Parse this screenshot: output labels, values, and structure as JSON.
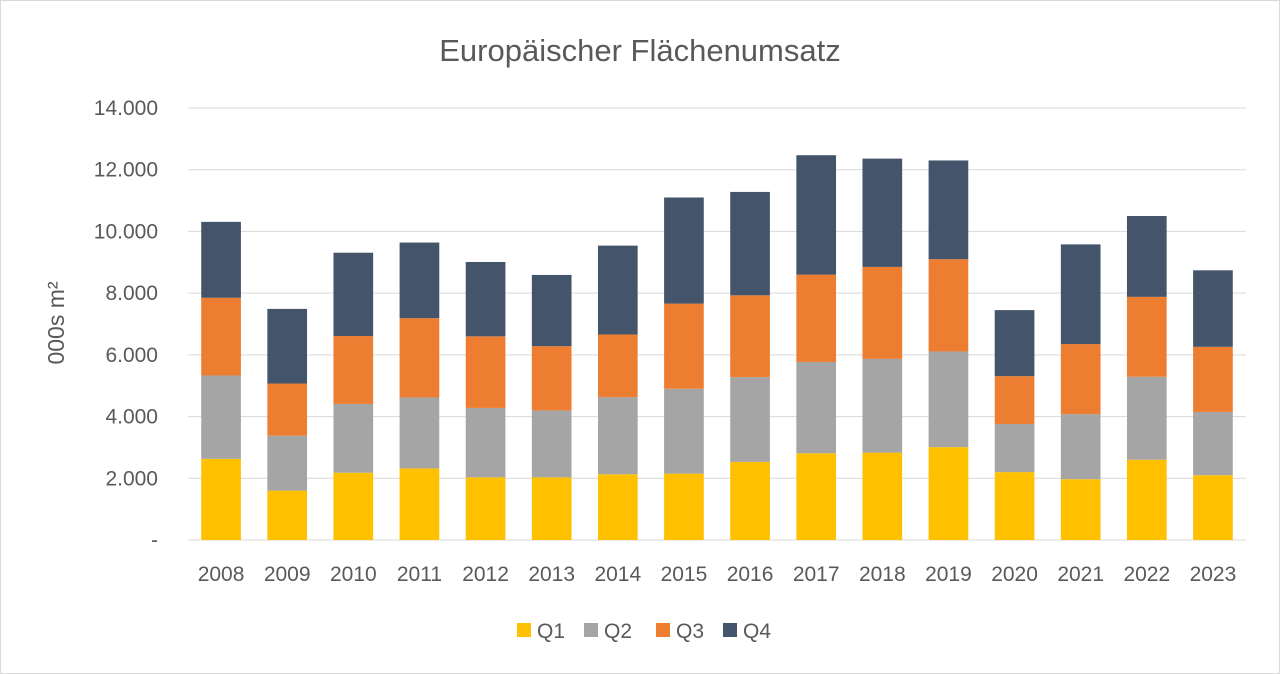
{
  "chart_data": {
    "type": "bar",
    "stacked": true,
    "title": "Europäischer Flächenumsatz",
    "ylabel": "000s m²",
    "xlabel": "",
    "ylim": [
      0,
      14000
    ],
    "yticks": [
      {
        "value": 0,
        "label": "-"
      },
      {
        "value": 2000,
        "label": "2.000"
      },
      {
        "value": 4000,
        "label": "4.000"
      },
      {
        "value": 6000,
        "label": "6.000"
      },
      {
        "value": 8000,
        "label": "8.000"
      },
      {
        "value": 10000,
        "label": "10.000"
      },
      {
        "value": 12000,
        "label": "12.000"
      },
      {
        "value": 14000,
        "label": "14.000"
      }
    ],
    "grid": true,
    "legend_position": "bottom",
    "categories": [
      "2008",
      "2009",
      "2010",
      "2011",
      "2012",
      "2013",
      "2014",
      "2015",
      "2016",
      "2017",
      "2018",
      "2019",
      "2020",
      "2021",
      "2022",
      "2023"
    ],
    "series": [
      {
        "name": "Q1",
        "color": "#ffc000",
        "values": [
          2630,
          1600,
          2180,
          2320,
          2030,
          2030,
          2130,
          2150,
          2530,
          2810,
          2830,
          3010,
          2200,
          1970,
          2600,
          2100
        ]
      },
      {
        "name": "Q2",
        "color": "#a5a5a5",
        "values": [
          2700,
          1780,
          2230,
          2300,
          2250,
          2170,
          2500,
          2750,
          2750,
          2960,
          3040,
          3100,
          1560,
          2110,
          2690,
          2050
        ]
      },
      {
        "name": "Q3",
        "color": "#ed7d31",
        "values": [
          2520,
          1690,
          2200,
          2570,
          2320,
          2080,
          2030,
          2760,
          2650,
          2830,
          2980,
          2990,
          1550,
          2270,
          2590,
          2110
        ]
      },
      {
        "name": "Q4",
        "color": "#44546a",
        "values": [
          2460,
          2420,
          2700,
          2450,
          2410,
          2310,
          2880,
          3440,
          3350,
          3870,
          3510,
          3200,
          2140,
          3230,
          2620,
          2480
        ]
      }
    ]
  }
}
